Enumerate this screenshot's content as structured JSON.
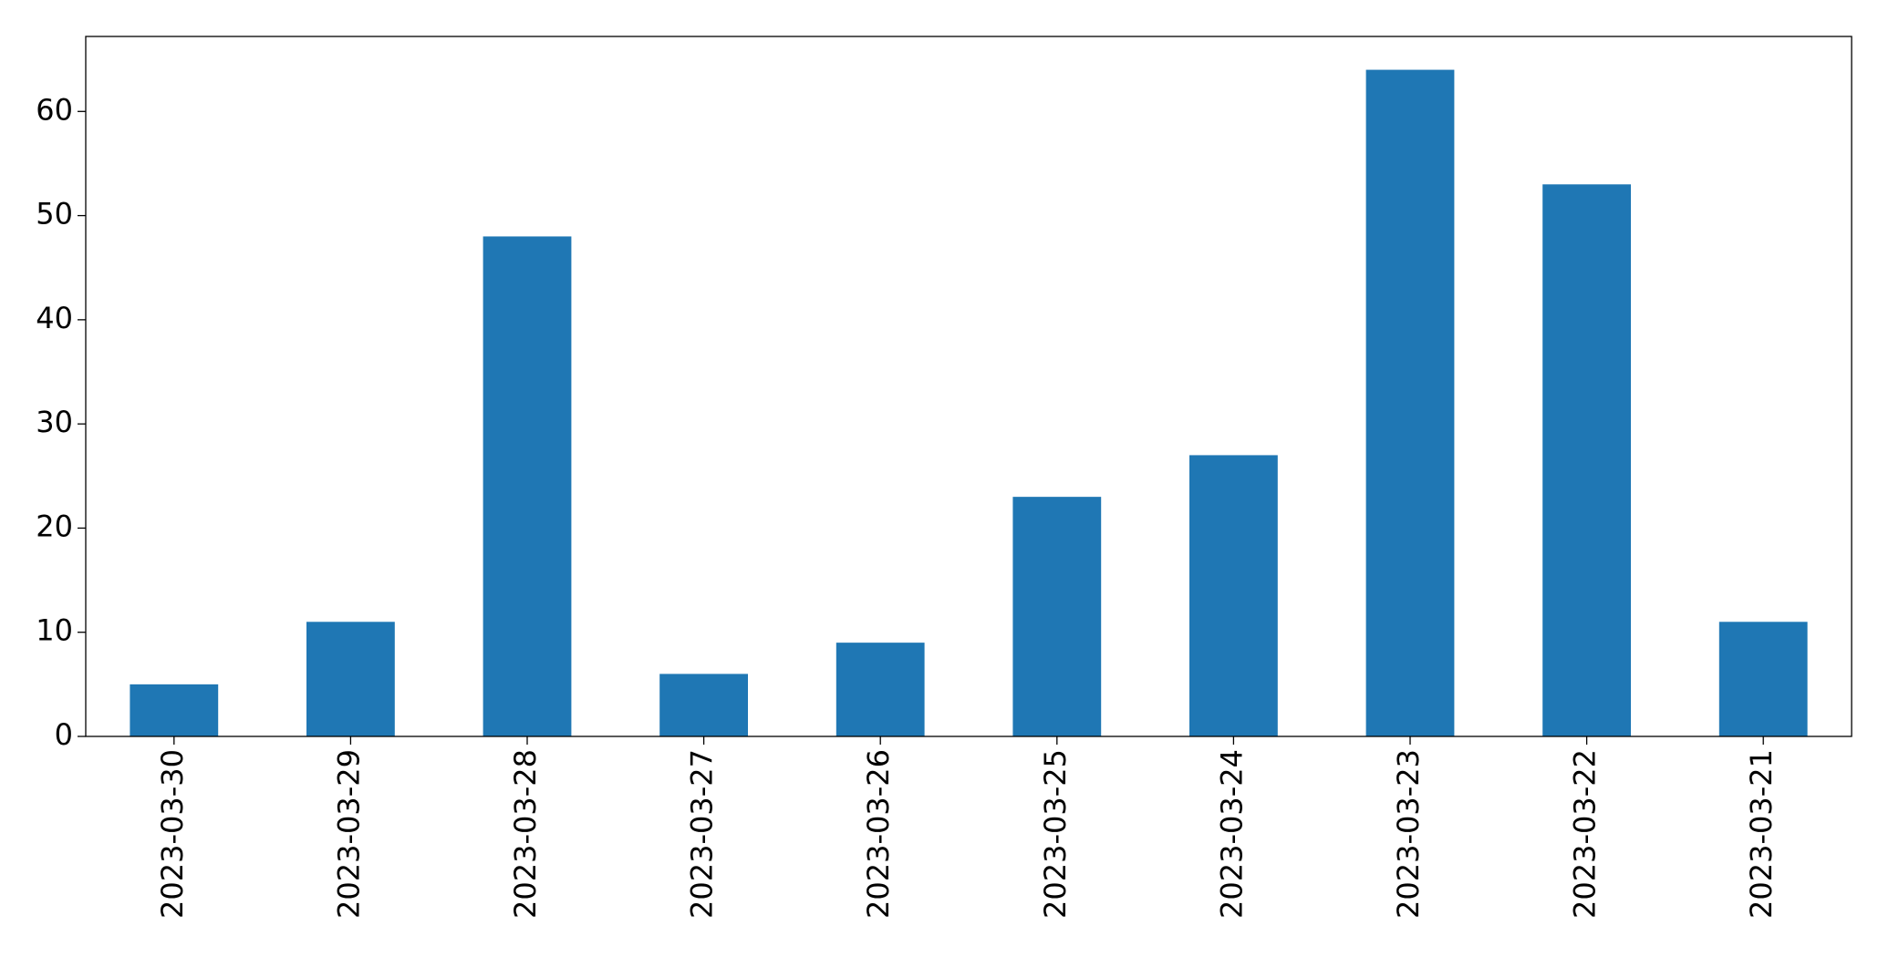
{
  "chart_data": {
    "type": "bar",
    "categories": [
      "2023-03-30",
      "2023-03-29",
      "2023-03-28",
      "2023-03-27",
      "2023-03-26",
      "2023-03-25",
      "2023-03-24",
      "2023-03-23",
      "2023-03-22",
      "2023-03-21"
    ],
    "values": [
      5,
      11,
      48,
      6,
      9,
      23,
      27,
      64,
      53,
      11
    ],
    "color": "#1f77b4",
    "ylim": [
      0,
      67.2
    ],
    "yticks": [
      0,
      10,
      20,
      30,
      40,
      50,
      60
    ],
    "grid": false
  }
}
